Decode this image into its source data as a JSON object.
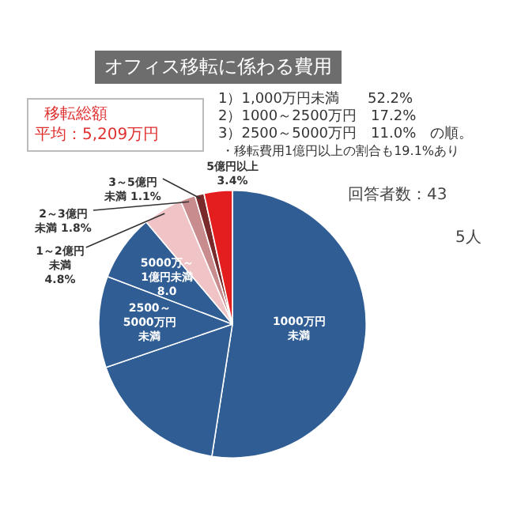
{
  "chart_data": {
    "type": "pie",
    "title": "オフィス移転に係わる費用",
    "categories": [
      "1000万円未満",
      null,
      "2500～5000万円未満",
      "5000万～1億円未満",
      "1～2億円未満",
      "2～3億円未満",
      "3～5億円未満",
      "5億円以上"
    ],
    "values": [
      52.2,
      17.2,
      11.0,
      8.0,
      4.8,
      1.8,
      1.1,
      3.4
    ],
    "value_labels": [
      null,
      null,
      null,
      "8.0",
      "4.8%",
      "1.8%",
      "1.1%",
      "3.4%"
    ],
    "colors": [
      "#2f5d94",
      "#2f5d94",
      "#2f5d94",
      "#2f5d94",
      "#f0c4c6",
      "#c98c8e",
      "#7a2a2a",
      "#e41e1e"
    ],
    "annotations": [
      "移転総額",
      "平均：5,209万円",
      "1）1,000万円未満　　52.2%",
      "2）1000～2500万円　17.2%",
      "3）2500～5000万円　11.0%　の順。",
      "・移転費用1億円以上の割合も19.1%あり",
      "回答者数：43",
      "5人"
    ],
    "legend": false
  }
}
